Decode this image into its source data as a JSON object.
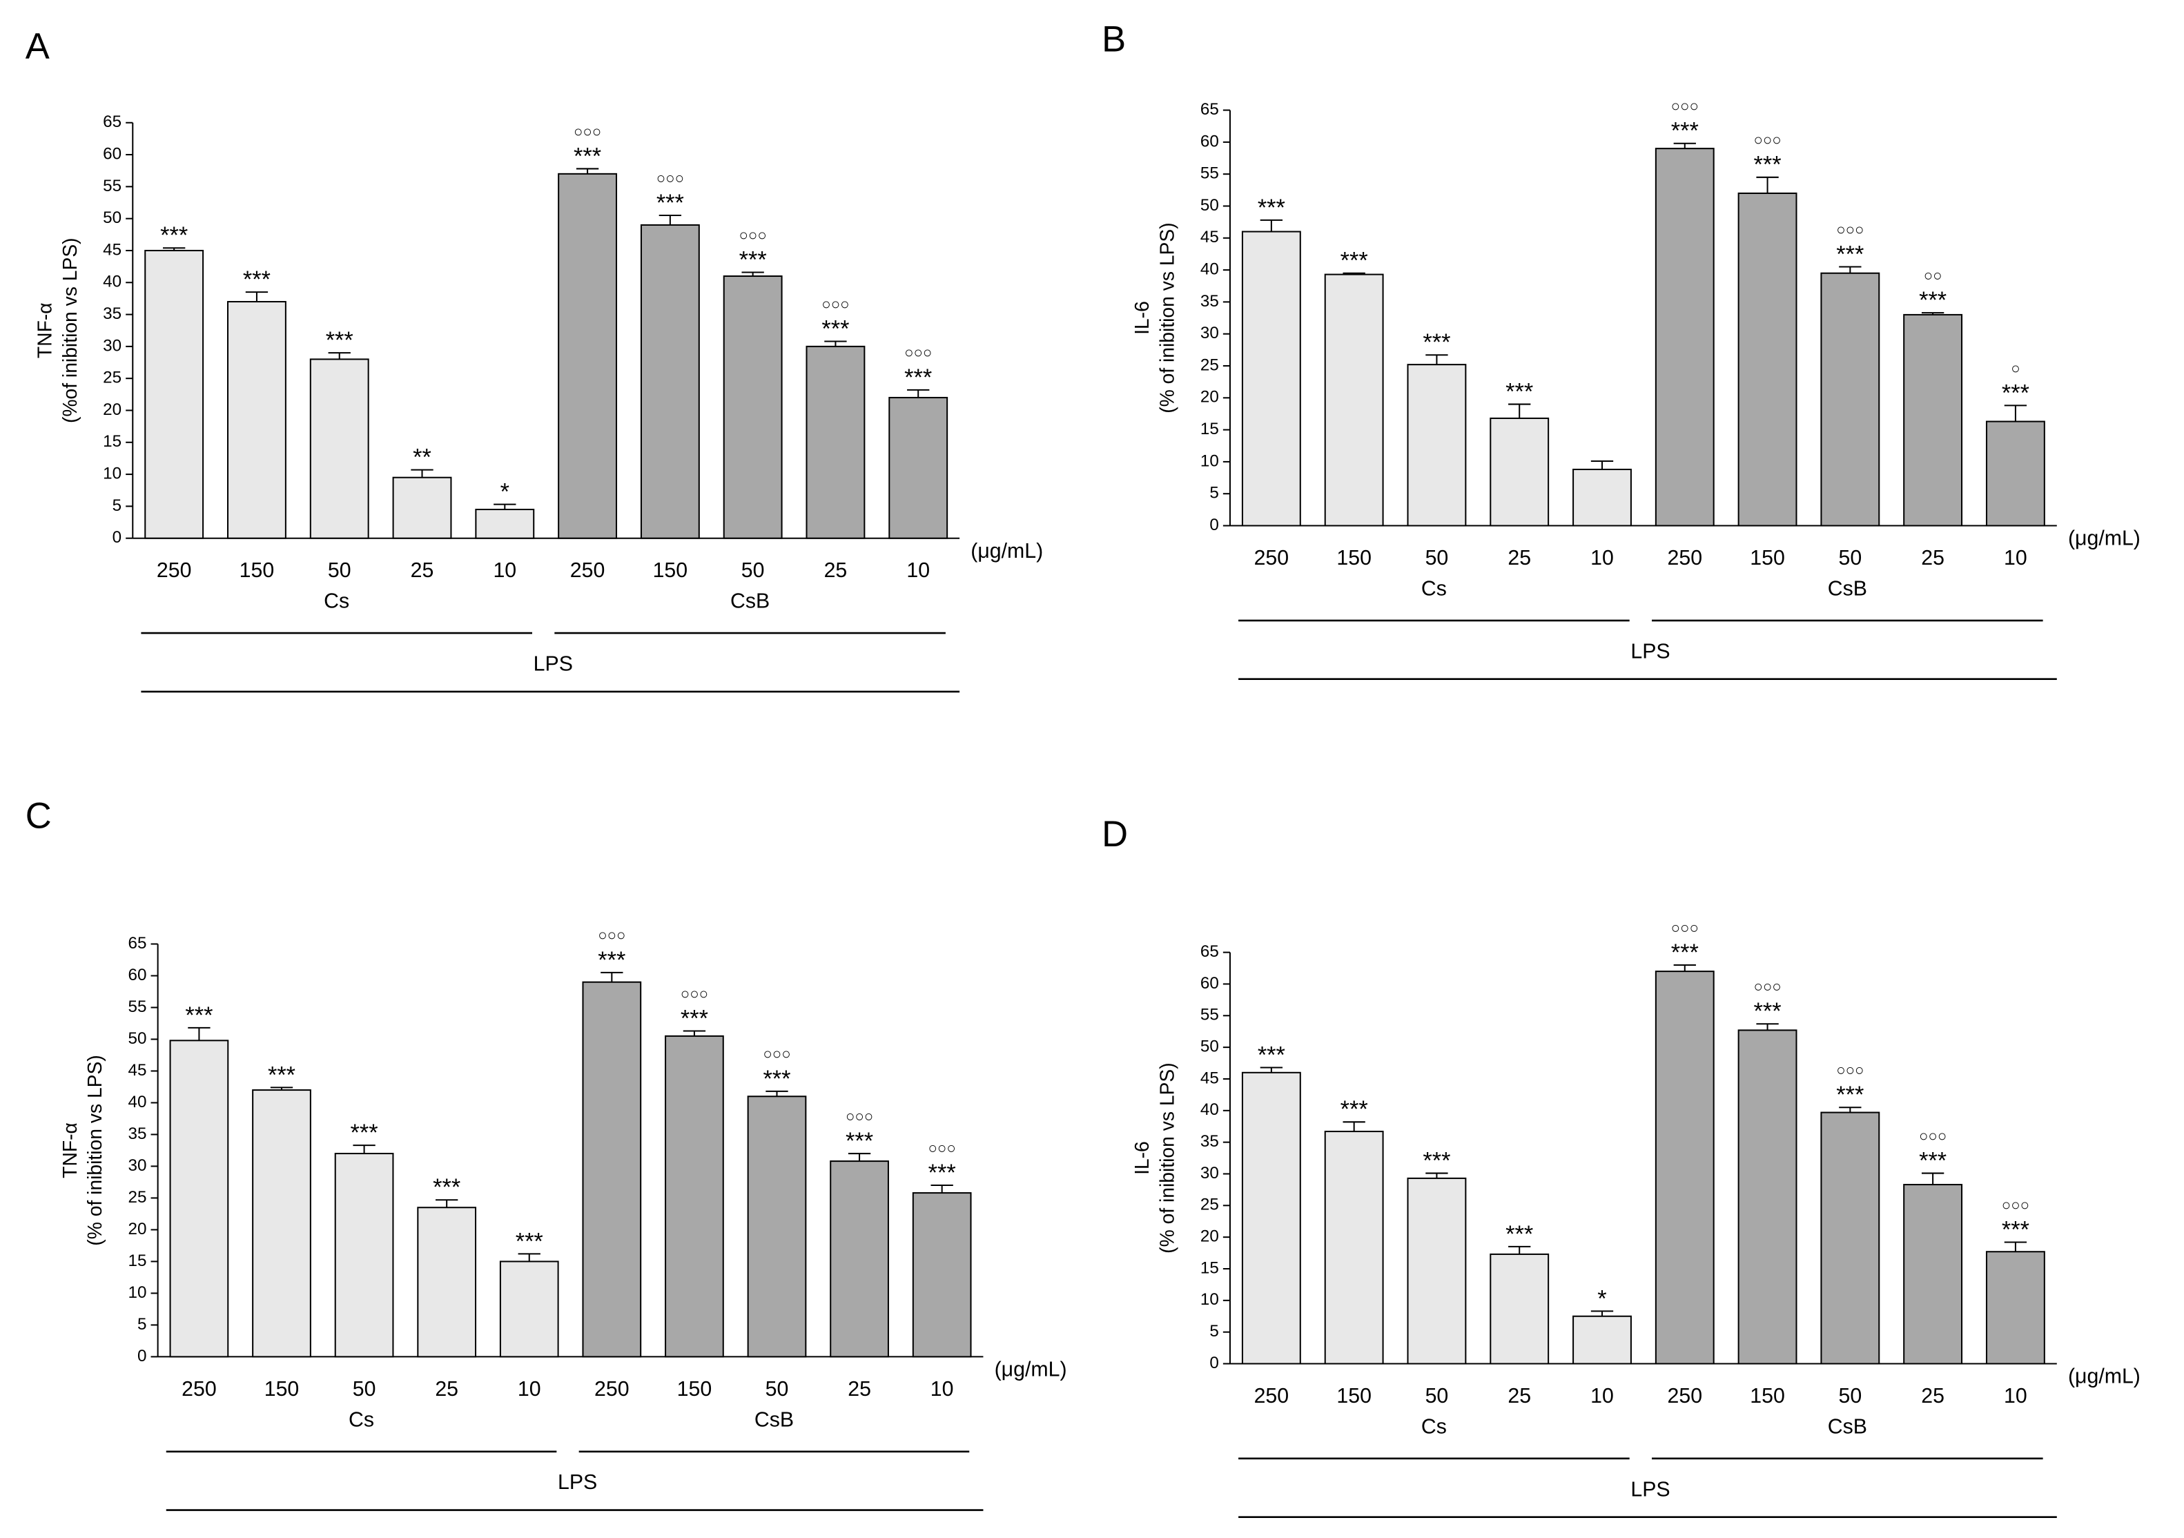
{
  "chart_data": [
    {
      "type": "bar",
      "panel": "A",
      "ylabel": [
        "TNF-α",
        "(%of inibition vs LPS)"
      ],
      "xunit": "(μg/mL)",
      "categories": [
        "250",
        "150",
        "50",
        "25",
        "10",
        "250",
        "150",
        "50",
        "25",
        "10"
      ],
      "values": [
        45,
        37,
        28,
        9.5,
        4.5,
        57,
        49,
        41,
        30,
        22
      ],
      "errors": [
        0.4,
        1.5,
        1,
        1.2,
        0.8,
        0.8,
        1.5,
        0.6,
        0.8,
        1.2
      ],
      "stars": [
        "***",
        "***",
        "***",
        "**",
        "*",
        "***",
        "***",
        "***",
        "***",
        "***"
      ],
      "circles": [
        null,
        null,
        null,
        null,
        null,
        "○○○",
        "○○○",
        "○○○",
        "○○○",
        "○○○"
      ],
      "bar_colors": [
        "#e8e8e8",
        "#e8e8e8",
        "#e8e8e8",
        "#e8e8e8",
        "#e8e8e8",
        "#a8a8a8",
        "#a8a8a8",
        "#a8a8a8",
        "#a8a8a8",
        "#a8a8a8"
      ],
      "groups": [
        "Cs",
        "CsB"
      ],
      "outer_group": "LPS",
      "ylim": [
        0,
        65
      ],
      "yticks": [
        0,
        5,
        10,
        15,
        20,
        25,
        30,
        35,
        40,
        45,
        50,
        55,
        60,
        65
      ]
    },
    {
      "type": "bar",
      "panel": "B",
      "ylabel": [
        "IL-6",
        "(% of inibition vs LPS)"
      ],
      "xunit": "(μg/mL)",
      "categories": [
        "250",
        "150",
        "50",
        "25",
        "10",
        "250",
        "150",
        "50",
        "25",
        "10"
      ],
      "values": [
        46,
        39.3,
        25.2,
        16.8,
        8.8,
        59,
        52,
        39.5,
        33,
        16.3
      ],
      "errors": [
        1.8,
        0.2,
        1.5,
        2.2,
        1.3,
        0.8,
        2.5,
        1,
        0.3,
        2.5
      ],
      "stars": [
        "***",
        "***",
        "***",
        "***",
        null,
        "***",
        "***",
        "***",
        "***",
        "***"
      ],
      "circles": [
        null,
        null,
        null,
        null,
        null,
        "○○○",
        "○○○",
        "○○○",
        "○○",
        "○"
      ],
      "bar_colors": [
        "#e8e8e8",
        "#e8e8e8",
        "#e8e8e8",
        "#e8e8e8",
        "#e8e8e8",
        "#a8a8a8",
        "#a8a8a8",
        "#a8a8a8",
        "#a8a8a8",
        "#a8a8a8"
      ],
      "groups": [
        "Cs",
        "CsB"
      ],
      "outer_group": "LPS",
      "ylim": [
        0,
        65
      ],
      "yticks": [
        0,
        5,
        10,
        15,
        20,
        25,
        30,
        35,
        40,
        45,
        50,
        55,
        60,
        65
      ]
    },
    {
      "type": "bar",
      "panel": "C",
      "ylabel": [
        "TNF-α",
        "(% of inibition vs LPS)"
      ],
      "xunit": "(μg/mL)",
      "categories": [
        "250",
        "150",
        "50",
        "25",
        "10",
        "250",
        "150",
        "50",
        "25",
        "10"
      ],
      "values": [
        49.8,
        42,
        32,
        23.5,
        15,
        59,
        50.5,
        41,
        30.8,
        25.8
      ],
      "errors": [
        2,
        0.4,
        1.3,
        1.2,
        1.2,
        1.5,
        0.8,
        0.8,
        1.2,
        1.2
      ],
      "stars": [
        "***",
        "***",
        "***",
        "***",
        "***",
        "***",
        "***",
        "***",
        "***",
        "***"
      ],
      "circles": [
        null,
        null,
        null,
        null,
        null,
        "○○○",
        "○○○",
        "○○○",
        "○○○",
        "○○○"
      ],
      "bar_colors": [
        "#e8e8e8",
        "#e8e8e8",
        "#e8e8e8",
        "#e8e8e8",
        "#e8e8e8",
        "#a8a8a8",
        "#a8a8a8",
        "#a8a8a8",
        "#a8a8a8",
        "#a8a8a8"
      ],
      "groups": [
        "Cs",
        "CsB"
      ],
      "outer_group": "LPS",
      "ylim": [
        0,
        65
      ],
      "yticks": [
        0,
        5,
        10,
        15,
        20,
        25,
        30,
        35,
        40,
        45,
        50,
        55,
        60,
        65
      ]
    },
    {
      "type": "bar",
      "panel": "D",
      "ylabel": [
        "IL-6",
        "(% of inibition vs LPS)"
      ],
      "xunit": "(μg/mL)",
      "categories": [
        "250",
        "150",
        "50",
        "25",
        "10",
        "250",
        "150",
        "50",
        "25",
        "10"
      ],
      "values": [
        46,
        36.7,
        29.3,
        17.3,
        7.5,
        62,
        52.7,
        39.7,
        28.3,
        17.7
      ],
      "errors": [
        0.8,
        1.5,
        0.8,
        1.2,
        0.8,
        1,
        1,
        0.8,
        1.8,
        1.5
      ],
      "stars": [
        "***",
        "***",
        "***",
        "***",
        "*",
        "***",
        "***",
        "***",
        "***",
        "***"
      ],
      "circles": [
        null,
        null,
        null,
        null,
        null,
        "○○○",
        "○○○",
        "○○○",
        "○○○",
        "○○○"
      ],
      "bar_colors": [
        "#e8e8e8",
        "#e8e8e8",
        "#e8e8e8",
        "#e8e8e8",
        "#e8e8e8",
        "#a8a8a8",
        "#a8a8a8",
        "#a8a8a8",
        "#a8a8a8",
        "#a8a8a8"
      ],
      "groups": [
        "Cs",
        "CsB"
      ],
      "outer_group": "LPS",
      "ylim": [
        0,
        65
      ],
      "yticks": [
        0,
        5,
        10,
        15,
        20,
        25,
        30,
        35,
        40,
        45,
        50,
        55,
        60,
        65
      ]
    }
  ]
}
